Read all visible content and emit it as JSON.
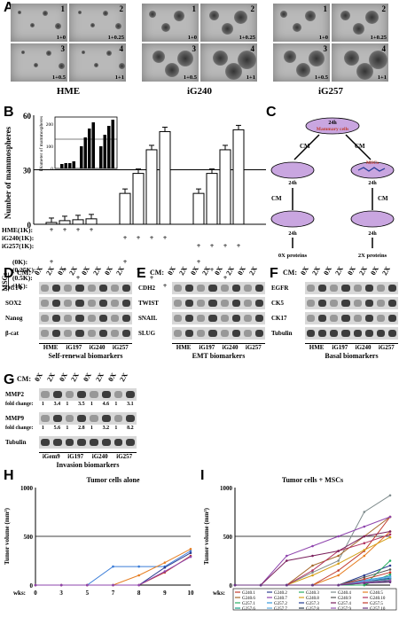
{
  "panels": {
    "A": "A",
    "B": "B",
    "C": "C",
    "D": "D",
    "E": "E",
    "F": "F",
    "G": "G",
    "H": "H",
    "I": "I"
  },
  "panelA": {
    "groups": [
      "HME",
      "iG240",
      "iG257"
    ],
    "tiles": [
      {
        "n": "1",
        "c": "1+0"
      },
      {
        "n": "2",
        "c": "1+0.25"
      },
      {
        "n": "3",
        "c": "1+0.5"
      },
      {
        "n": "4",
        "c": "1+1"
      }
    ]
  },
  "panelB": {
    "ylabel": "Number of mammospheres",
    "yticks": [
      "0",
      "30",
      "60"
    ],
    "inset_ylabel": "Diameter of mammospheres",
    "inset_yticks": [
      "0",
      "100",
      "200"
    ],
    "rowlabels": [
      "HME(1K):",
      "iG240(1K):",
      "iG257(1K):",
      "MSCs",
      "(0K):",
      "(0.25K):",
      "(0.5K):",
      "(1K):"
    ],
    "plus": "+"
  },
  "panelC": {
    "top": "24h",
    "top_label": "Mammary cells",
    "cm": "CM",
    "mid": "24h",
    "mid_label": "MSCs",
    "bottom_left": "0X proteins",
    "bottom_right": "2X proteins"
  },
  "panelD": {
    "cm": "CM:",
    "heads": [
      "0X",
      "2X",
      "0X",
      "2X",
      "0X",
      "2X",
      "0X",
      "2X"
    ],
    "rows": [
      "OCT4",
      "SOX2",
      "Nanog",
      "β-cat"
    ],
    "groups": [
      "HME",
      "iG197",
      "iG240",
      "iG257"
    ],
    "caption": "Self-renewal biomarkers"
  },
  "panelE": {
    "cm": "CM:",
    "heads": [
      "0X",
      "2X",
      "0X",
      "2X",
      "0X",
      "2X",
      "0X",
      "2X"
    ],
    "rows": [
      "CDH2",
      "TWIST",
      "SNAIL",
      "SLUG"
    ],
    "groups": [
      "HME",
      "iG197",
      "iG240",
      "iG257"
    ],
    "caption": "EMT biomarkers"
  },
  "panelF": {
    "cm": "CM:",
    "heads": [
      "0X",
      "2X",
      "0X",
      "2X",
      "0X",
      "2X",
      "0X",
      "2X"
    ],
    "rows": [
      "EGFR",
      "CK5",
      "CK17",
      "Tubulin"
    ],
    "groups": [
      "HME",
      "iG197",
      "iG240",
      "iG257"
    ],
    "caption": "Basal biomarkers"
  },
  "panelG": {
    "cm": "CM:",
    "heads": [
      "0X",
      "2X",
      "0X",
      "2X",
      "0X",
      "2X",
      "0X",
      "2X"
    ],
    "rows": [
      "MMP2",
      "MMP9",
      "Tubulin"
    ],
    "fold_label": "fold change:",
    "fold_mmp2": [
      "1",
      "3.4",
      "1",
      "3.5",
      "1",
      "4.6",
      "1",
      "3.1"
    ],
    "fold_mmp9": [
      "1",
      "5.6",
      "1",
      "2.8",
      "1",
      "3.2",
      "1",
      "8.2"
    ],
    "groups": [
      "iGem9",
      "iG197",
      "iG240",
      "iG257"
    ],
    "caption": "Invasion biomarkers"
  },
  "panelH": {
    "title": "Tumor cells alone",
    "ylabel": "Tumor volume (mm³)",
    "xlabel": "wks:",
    "xticks": [
      "0",
      "3",
      "5",
      "7",
      "8",
      "9",
      "10"
    ],
    "yticks": [
      "0",
      "500",
      "1000"
    ]
  },
  "panelI": {
    "title": "Tumor cells + MSCs",
    "ylabel": "Tumor volume (mm³)",
    "xlabel": "wks:",
    "xticks": [
      "0",
      "3",
      "5",
      "7",
      "8",
      "9",
      "10"
    ],
    "yticks": [
      "0",
      "500",
      "1000"
    ],
    "legend": [
      {
        "name": "G240.1",
        "color": "#c0392b"
      },
      {
        "name": "G240.2",
        "color": "#2c3e91"
      },
      {
        "name": "G240.3",
        "color": "#27ae60"
      },
      {
        "name": "G240.4",
        "color": "#7f8c8d"
      },
      {
        "name": "G240.5",
        "color": "#e67e22"
      },
      {
        "name": "G240.6",
        "color": "#a5672a"
      },
      {
        "name": "G240.7",
        "color": "#8e44ad"
      },
      {
        "name": "G240.8",
        "color": "#d4a017"
      },
      {
        "name": "G240.9",
        "color": "#555555"
      },
      {
        "name": "G240.10",
        "color": "#b03060"
      },
      {
        "name": "G257.1",
        "color": "#27ae60"
      },
      {
        "name": "G257.2",
        "color": "#3498db"
      },
      {
        "name": "G257.3",
        "color": "#1f3a93"
      },
      {
        "name": "G257.4",
        "color": "#7a1f5c"
      },
      {
        "name": "G257.5",
        "color": "#c0392b"
      },
      {
        "name": "G257.6",
        "color": "#16a085"
      },
      {
        "name": "G257.7",
        "color": "#5dade2"
      },
      {
        "name": "G257.8",
        "color": "#2e4053"
      },
      {
        "name": "G257.9",
        "color": "#9b59b6"
      },
      {
        "name": "G257.10",
        "color": "#6c3483"
      }
    ]
  },
  "chart_data": [
    {
      "type": "bar",
      "title": "",
      "ylabel": "Number of mammospheres",
      "categories": [
        "HME 0K",
        "HME 0.25K",
        "HME 0.5K",
        "HME 1K",
        "iG240 0K",
        "iG240 0.25K",
        "iG240 0.5K",
        "iG240 1K",
        "iG257 0K",
        "iG257 0.25K",
        "iG257 0.5K",
        "iG257 1K"
      ],
      "values": [
        1,
        2,
        2.5,
        3,
        17,
        28,
        41,
        51,
        17,
        28,
        41,
        52
      ],
      "ylim": [
        0,
        60
      ]
    },
    {
      "type": "line",
      "title": "Tumor cells alone",
      "xlabel": "wks:",
      "ylabel": "Tumor volume (mm³)",
      "x": [
        0,
        3,
        5,
        7,
        8,
        9,
        10
      ],
      "ylim": [
        0,
        1000
      ],
      "series": [
        {
          "color": "#3b7dd8",
          "values": [
            0,
            0,
            0,
            190,
            190,
            190,
            350
          ]
        },
        {
          "color": "#e67e22",
          "values": [
            0,
            0,
            0,
            0,
            100,
            230,
            370
          ]
        },
        {
          "color": "#2c3e91",
          "values": [
            0,
            0,
            0,
            0,
            0,
            180,
            330
          ]
        },
        {
          "color": "#c0392b",
          "values": [
            0,
            0,
            0,
            0,
            0,
            130,
            300
          ]
        },
        {
          "color": "#8e44ad",
          "values": [
            0,
            0,
            0,
            0,
            0,
            140,
            290
          ]
        }
      ]
    },
    {
      "type": "line",
      "title": "Tumor cells + MSCs",
      "xlabel": "wks:",
      "ylabel": "Tumor volume (mm³)",
      "x": [
        0,
        3,
        5,
        7,
        8,
        9,
        10
      ],
      "ylim": [
        0,
        1000
      ],
      "series": [
        {
          "name": "G240.1",
          "values": [
            0,
            0,
            0,
            0,
            150,
            350,
            700
          ]
        },
        {
          "name": "G240.2",
          "values": [
            0,
            0,
            0,
            0,
            0,
            100,
            200
          ]
        },
        {
          "name": "G240.3",
          "values": [
            0,
            0,
            0,
            0,
            0,
            0,
            250
          ]
        },
        {
          "name": "G240.4",
          "values": [
            0,
            0,
            0,
            130,
            250,
            750,
            920
          ]
        },
        {
          "name": "G240.5",
          "values": [
            0,
            0,
            0,
            0,
            100,
            300,
            550
          ]
        },
        {
          "name": "G240.6",
          "values": [
            0,
            0,
            0,
            200,
            300,
            500,
            700
          ]
        },
        {
          "name": "G240.7",
          "values": [
            0,
            0,
            300,
            400,
            500,
            600,
            700
          ]
        },
        {
          "name": "G240.8",
          "values": [
            0,
            0,
            0,
            100,
            220,
            360,
            490
          ]
        },
        {
          "name": "G240.9",
          "values": [
            0,
            0,
            0,
            0,
            0,
            80,
            160
          ]
        },
        {
          "name": "G240.10",
          "values": [
            0,
            0,
            0,
            150,
            350,
            430,
            520
          ]
        },
        {
          "name": "G257.1",
          "values": [
            0,
            0,
            0,
            0,
            0,
            0,
            110
          ]
        },
        {
          "name": "G257.2",
          "values": [
            0,
            0,
            0,
            0,
            0,
            50,
            90
          ]
        },
        {
          "name": "G257.3",
          "values": [
            0,
            0,
            0,
            0,
            0,
            40,
            70
          ]
        },
        {
          "name": "G257.4",
          "values": [
            0,
            0,
            250,
            300,
            350,
            500,
            550
          ]
        },
        {
          "name": "G257.5",
          "values": [
            0,
            0,
            0,
            0,
            0,
            60,
            130
          ]
        },
        {
          "name": "G257.6",
          "values": [
            0,
            0,
            0,
            0,
            0,
            30,
            60
          ]
        },
        {
          "name": "G257.7",
          "values": [
            0,
            0,
            0,
            0,
            0,
            40,
            80
          ]
        },
        {
          "name": "G257.8",
          "values": [
            0,
            0,
            0,
            0,
            0,
            20,
            40
          ]
        },
        {
          "name": "G257.9",
          "values": [
            0,
            0,
            0,
            0,
            0,
            30,
            50
          ]
        },
        {
          "name": "G257.10",
          "values": [
            0,
            0,
            0,
            0,
            0,
            20,
            30
          ]
        }
      ]
    }
  ]
}
